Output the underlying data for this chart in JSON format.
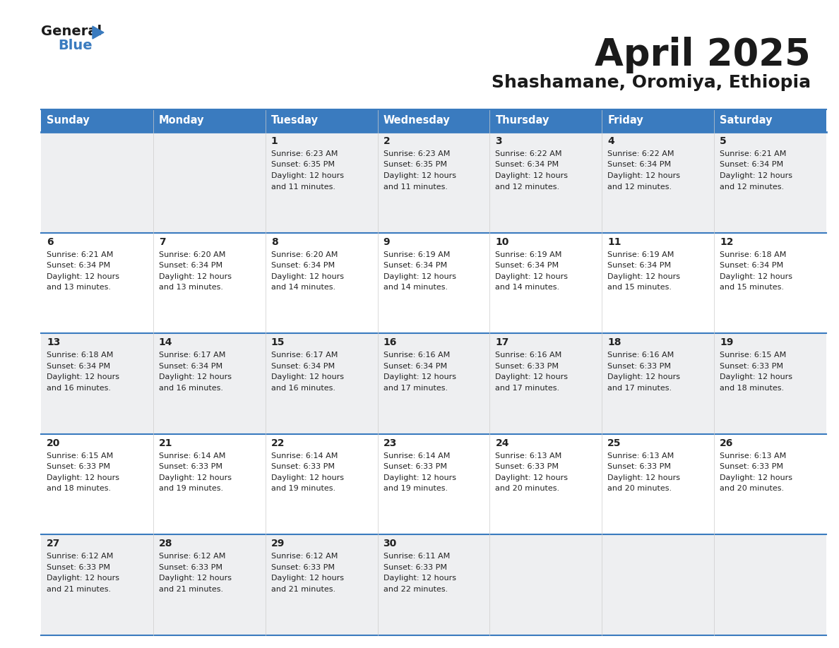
{
  "title": "April 2025",
  "subtitle": "Shashamane, Oromiya, Ethiopia",
  "header_bg": "#3a7bbf",
  "header_text": "#ffffff",
  "row_bg_odd": "#eeeff1",
  "row_bg_even": "#ffffff",
  "border_color": "#3a7bbf",
  "text_color": "#222222",
  "day_names": [
    "Sunday",
    "Monday",
    "Tuesday",
    "Wednesday",
    "Thursday",
    "Friday",
    "Saturday"
  ],
  "weeks": [
    [
      {
        "day": "",
        "sunrise": "",
        "sunset": "",
        "daylight1": "",
        "daylight2": ""
      },
      {
        "day": "",
        "sunrise": "",
        "sunset": "",
        "daylight1": "",
        "daylight2": ""
      },
      {
        "day": "1",
        "sunrise": "Sunrise: 6:23 AM",
        "sunset": "Sunset: 6:35 PM",
        "daylight1": "Daylight: 12 hours",
        "daylight2": "and 11 minutes."
      },
      {
        "day": "2",
        "sunrise": "Sunrise: 6:23 AM",
        "sunset": "Sunset: 6:35 PM",
        "daylight1": "Daylight: 12 hours",
        "daylight2": "and 11 minutes."
      },
      {
        "day": "3",
        "sunrise": "Sunrise: 6:22 AM",
        "sunset": "Sunset: 6:34 PM",
        "daylight1": "Daylight: 12 hours",
        "daylight2": "and 12 minutes."
      },
      {
        "day": "4",
        "sunrise": "Sunrise: 6:22 AM",
        "sunset": "Sunset: 6:34 PM",
        "daylight1": "Daylight: 12 hours",
        "daylight2": "and 12 minutes."
      },
      {
        "day": "5",
        "sunrise": "Sunrise: 6:21 AM",
        "sunset": "Sunset: 6:34 PM",
        "daylight1": "Daylight: 12 hours",
        "daylight2": "and 12 minutes."
      }
    ],
    [
      {
        "day": "6",
        "sunrise": "Sunrise: 6:21 AM",
        "sunset": "Sunset: 6:34 PM",
        "daylight1": "Daylight: 12 hours",
        "daylight2": "and 13 minutes."
      },
      {
        "day": "7",
        "sunrise": "Sunrise: 6:20 AM",
        "sunset": "Sunset: 6:34 PM",
        "daylight1": "Daylight: 12 hours",
        "daylight2": "and 13 minutes."
      },
      {
        "day": "8",
        "sunrise": "Sunrise: 6:20 AM",
        "sunset": "Sunset: 6:34 PM",
        "daylight1": "Daylight: 12 hours",
        "daylight2": "and 14 minutes."
      },
      {
        "day": "9",
        "sunrise": "Sunrise: 6:19 AM",
        "sunset": "Sunset: 6:34 PM",
        "daylight1": "Daylight: 12 hours",
        "daylight2": "and 14 minutes."
      },
      {
        "day": "10",
        "sunrise": "Sunrise: 6:19 AM",
        "sunset": "Sunset: 6:34 PM",
        "daylight1": "Daylight: 12 hours",
        "daylight2": "and 14 minutes."
      },
      {
        "day": "11",
        "sunrise": "Sunrise: 6:19 AM",
        "sunset": "Sunset: 6:34 PM",
        "daylight1": "Daylight: 12 hours",
        "daylight2": "and 15 minutes."
      },
      {
        "day": "12",
        "sunrise": "Sunrise: 6:18 AM",
        "sunset": "Sunset: 6:34 PM",
        "daylight1": "Daylight: 12 hours",
        "daylight2": "and 15 minutes."
      }
    ],
    [
      {
        "day": "13",
        "sunrise": "Sunrise: 6:18 AM",
        "sunset": "Sunset: 6:34 PM",
        "daylight1": "Daylight: 12 hours",
        "daylight2": "and 16 minutes."
      },
      {
        "day": "14",
        "sunrise": "Sunrise: 6:17 AM",
        "sunset": "Sunset: 6:34 PM",
        "daylight1": "Daylight: 12 hours",
        "daylight2": "and 16 minutes."
      },
      {
        "day": "15",
        "sunrise": "Sunrise: 6:17 AM",
        "sunset": "Sunset: 6:34 PM",
        "daylight1": "Daylight: 12 hours",
        "daylight2": "and 16 minutes."
      },
      {
        "day": "16",
        "sunrise": "Sunrise: 6:16 AM",
        "sunset": "Sunset: 6:34 PM",
        "daylight1": "Daylight: 12 hours",
        "daylight2": "and 17 minutes."
      },
      {
        "day": "17",
        "sunrise": "Sunrise: 6:16 AM",
        "sunset": "Sunset: 6:33 PM",
        "daylight1": "Daylight: 12 hours",
        "daylight2": "and 17 minutes."
      },
      {
        "day": "18",
        "sunrise": "Sunrise: 6:16 AM",
        "sunset": "Sunset: 6:33 PM",
        "daylight1": "Daylight: 12 hours",
        "daylight2": "and 17 minutes."
      },
      {
        "day": "19",
        "sunrise": "Sunrise: 6:15 AM",
        "sunset": "Sunset: 6:33 PM",
        "daylight1": "Daylight: 12 hours",
        "daylight2": "and 18 minutes."
      }
    ],
    [
      {
        "day": "20",
        "sunrise": "Sunrise: 6:15 AM",
        "sunset": "Sunset: 6:33 PM",
        "daylight1": "Daylight: 12 hours",
        "daylight2": "and 18 minutes."
      },
      {
        "day": "21",
        "sunrise": "Sunrise: 6:14 AM",
        "sunset": "Sunset: 6:33 PM",
        "daylight1": "Daylight: 12 hours",
        "daylight2": "and 19 minutes."
      },
      {
        "day": "22",
        "sunrise": "Sunrise: 6:14 AM",
        "sunset": "Sunset: 6:33 PM",
        "daylight1": "Daylight: 12 hours",
        "daylight2": "and 19 minutes."
      },
      {
        "day": "23",
        "sunrise": "Sunrise: 6:14 AM",
        "sunset": "Sunset: 6:33 PM",
        "daylight1": "Daylight: 12 hours",
        "daylight2": "and 19 minutes."
      },
      {
        "day": "24",
        "sunrise": "Sunrise: 6:13 AM",
        "sunset": "Sunset: 6:33 PM",
        "daylight1": "Daylight: 12 hours",
        "daylight2": "and 20 minutes."
      },
      {
        "day": "25",
        "sunrise": "Sunrise: 6:13 AM",
        "sunset": "Sunset: 6:33 PM",
        "daylight1": "Daylight: 12 hours",
        "daylight2": "and 20 minutes."
      },
      {
        "day": "26",
        "sunrise": "Sunrise: 6:13 AM",
        "sunset": "Sunset: 6:33 PM",
        "daylight1": "Daylight: 12 hours",
        "daylight2": "and 20 minutes."
      }
    ],
    [
      {
        "day": "27",
        "sunrise": "Sunrise: 6:12 AM",
        "sunset": "Sunset: 6:33 PM",
        "daylight1": "Daylight: 12 hours",
        "daylight2": "and 21 minutes."
      },
      {
        "day": "28",
        "sunrise": "Sunrise: 6:12 AM",
        "sunset": "Sunset: 6:33 PM",
        "daylight1": "Daylight: 12 hours",
        "daylight2": "and 21 minutes."
      },
      {
        "day": "29",
        "sunrise": "Sunrise: 6:12 AM",
        "sunset": "Sunset: 6:33 PM",
        "daylight1": "Daylight: 12 hours",
        "daylight2": "and 21 minutes."
      },
      {
        "day": "30",
        "sunrise": "Sunrise: 6:11 AM",
        "sunset": "Sunset: 6:33 PM",
        "daylight1": "Daylight: 12 hours",
        "daylight2": "and 22 minutes."
      },
      {
        "day": "",
        "sunrise": "",
        "sunset": "",
        "daylight1": "",
        "daylight2": ""
      },
      {
        "day": "",
        "sunrise": "",
        "sunset": "",
        "daylight1": "",
        "daylight2": ""
      },
      {
        "day": "",
        "sunrise": "",
        "sunset": "",
        "daylight1": "",
        "daylight2": ""
      }
    ]
  ]
}
